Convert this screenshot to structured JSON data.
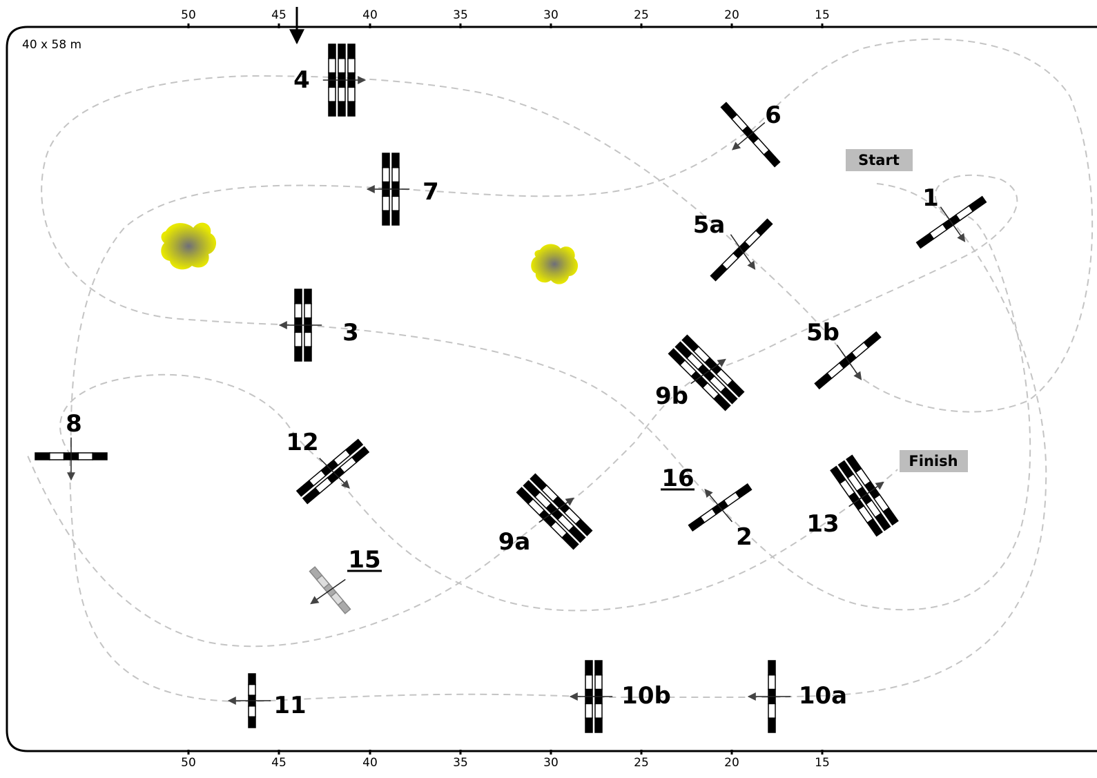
{
  "arena": {
    "size_label": "40 x 58 m",
    "top_scale": [
      "50",
      "45",
      "40",
      "35",
      "30",
      "25",
      "20",
      "15"
    ],
    "bottom_scale": [
      "50",
      "45",
      "40",
      "35",
      "30",
      "25",
      "20",
      "15"
    ]
  },
  "markers": {
    "start": "Start",
    "finish": "Finish"
  },
  "obstacles": [
    {
      "id": "4",
      "label": "4",
      "underlined": false,
      "kind": "triple"
    },
    {
      "id": "7",
      "label": "7",
      "underlined": false,
      "kind": "oxer"
    },
    {
      "id": "6",
      "label": "6",
      "underlined": false,
      "kind": "vertical"
    },
    {
      "id": "5a",
      "label": "5a",
      "underlined": false,
      "kind": "vertical"
    },
    {
      "id": "1",
      "label": "1",
      "underlined": false,
      "kind": "vertical"
    },
    {
      "id": "3",
      "label": "3",
      "underlined": false,
      "kind": "oxer"
    },
    {
      "id": "5b",
      "label": "5b",
      "underlined": false,
      "kind": "vertical"
    },
    {
      "id": "9b",
      "label": "9b",
      "underlined": false,
      "kind": "triple"
    },
    {
      "id": "8",
      "label": "8",
      "underlined": false,
      "kind": "vertical"
    },
    {
      "id": "12",
      "label": "12",
      "underlined": false,
      "kind": "oxer"
    },
    {
      "id": "16",
      "label": "16",
      "underlined": true,
      "kind": "vertical"
    },
    {
      "id": "2",
      "label": "2",
      "underlined": false,
      "kind": "vertical"
    },
    {
      "id": "13",
      "label": "13",
      "underlined": false,
      "kind": "triple"
    },
    {
      "id": "9a",
      "label": "9a",
      "underlined": false,
      "kind": "triple"
    },
    {
      "id": "15",
      "label": "15",
      "underlined": true,
      "kind": "vertical-grey"
    },
    {
      "id": "11",
      "label": "11",
      "underlined": false,
      "kind": "vertical"
    },
    {
      "id": "10b",
      "label": "10b",
      "underlined": false,
      "kind": "oxer"
    },
    {
      "id": "10a",
      "label": "10a",
      "underlined": false,
      "kind": "vertical"
    }
  ],
  "decorations": [
    "tree-icon",
    "tree-icon"
  ],
  "colors": {
    "pole": "#000000",
    "pole_gap": "#ffffff",
    "grey_pole": "#aaaaaa",
    "route": "#c4c4c4",
    "tag_fill": "#bdbdbd",
    "tree_outer": "#e6e600",
    "tree_inner": "#777777"
  }
}
